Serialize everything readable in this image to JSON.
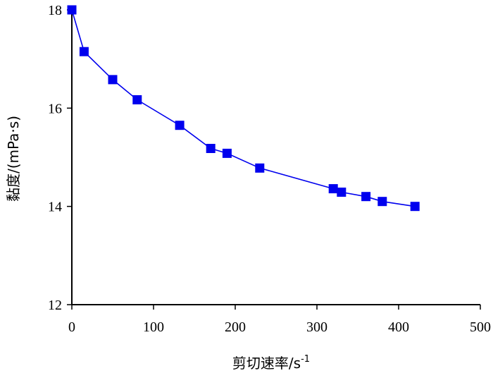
{
  "chart_data": {
    "type": "line",
    "xlabel": "剪切速率/s",
    "xlabel_superscript": "-1",
    "ylabel": "黏度/(mPa·s)",
    "xlim": [
      0,
      500
    ],
    "ylim": [
      12,
      18
    ],
    "x_ticks": [
      0,
      100,
      200,
      300,
      400,
      500
    ],
    "y_ticks": [
      12,
      14,
      16,
      18
    ],
    "grid": false,
    "legend": "none",
    "series": [
      {
        "color": "#0000ee",
        "marker": "square",
        "x": [
          0,
          15,
          50,
          80,
          132,
          170,
          190,
          230,
          320,
          330,
          360,
          380,
          420
        ],
        "y": [
          18.0,
          17.15,
          16.58,
          16.17,
          15.65,
          15.18,
          15.08,
          14.78,
          14.36,
          14.29,
          14.2,
          14.1,
          14.0
        ]
      }
    ]
  }
}
